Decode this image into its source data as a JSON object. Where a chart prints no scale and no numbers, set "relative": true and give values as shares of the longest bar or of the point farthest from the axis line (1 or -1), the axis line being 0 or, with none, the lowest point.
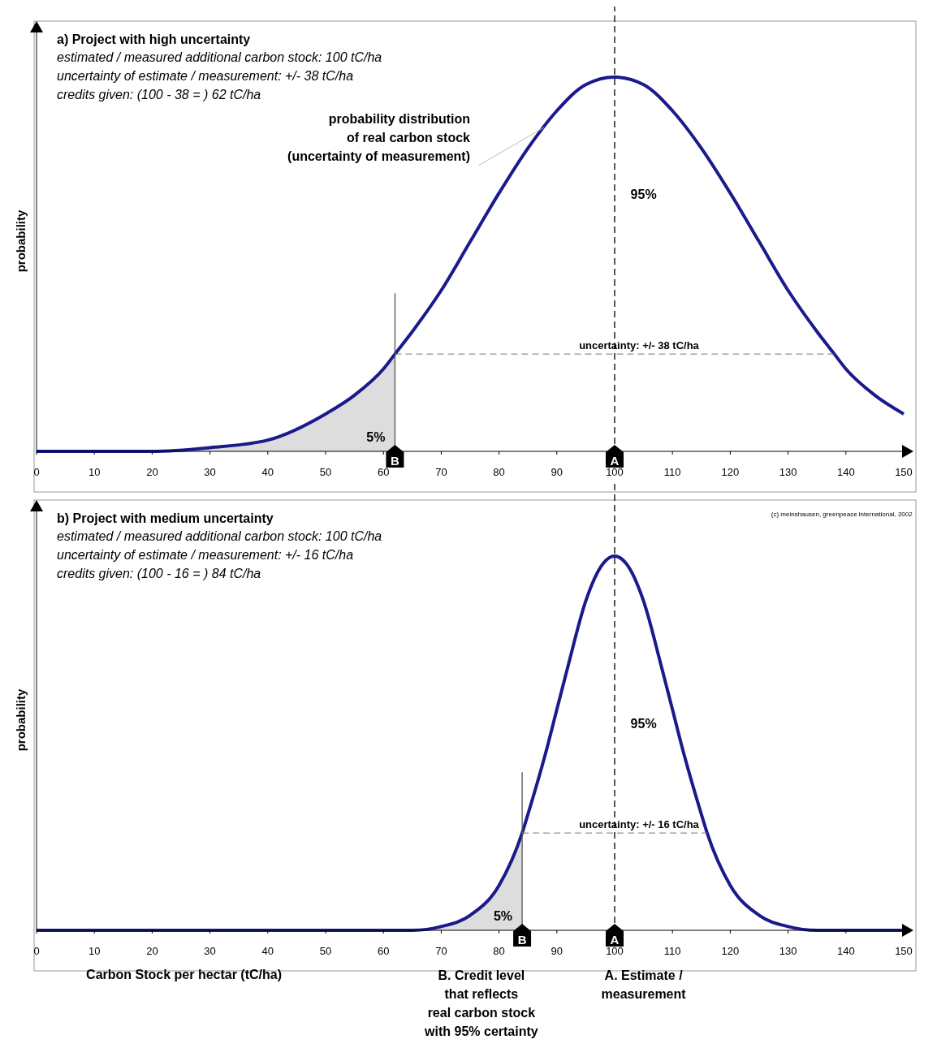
{
  "chart_data": [
    {
      "type": "line",
      "title": "a) Project with high uncertainty",
      "subtitle": "estimated / measured additional carbon stock: 100 tC/ha\nuncertainty of estimate / measurement: +/- 38 tC/ha\ncredits given: (100 - 38 = ) 62 tC/ha",
      "ylabel": "probability",
      "relative": true,
      "x": [
        0,
        10,
        20,
        30,
        40,
        50,
        55,
        60,
        62,
        65,
        70,
        75,
        80,
        85,
        90,
        95,
        100,
        105,
        110,
        115,
        120,
        125,
        130,
        135,
        138,
        140,
        145,
        150
      ],
      "series": [
        {
          "color": "#1a1a8c",
          "values": [
            0,
            0,
            0,
            0.01,
            0.03,
            0.1,
            0.15,
            0.22,
            0.26,
            0.32,
            0.43,
            0.56,
            0.69,
            0.81,
            0.91,
            0.98,
            1,
            0.98,
            0.91,
            0.81,
            0.69,
            0.56,
            0.43,
            0.32,
            0.26,
            0.22,
            0.15,
            0.1
          ]
        },
        {
          "type": "area",
          "name": "5%",
          "color": "#dddddd",
          "x": [
            0,
            10,
            20,
            30,
            40,
            50,
            55,
            60,
            62
          ],
          "values": [
            0,
            0,
            0,
            0.01,
            0.03,
            0.1,
            0.15,
            0.22,
            0.26
          ]
        }
      ],
      "xlim": [
        0,
        150
      ],
      "xticks": [
        0,
        10,
        20,
        30,
        40,
        50,
        60,
        70,
        80,
        90,
        100,
        110,
        120,
        130,
        140,
        150
      ],
      "ref_lines": [
        {
          "axis": "x",
          "value": 100,
          "label": "A",
          "line_style": "dashed",
          "color": "#000000"
        },
        {
          "axis": "x",
          "value": 62,
          "label": "B",
          "line_style": "solid",
          "color": "#555555"
        },
        {
          "axis": "y",
          "value": 0.26,
          "label": "uncertainty: +/- 38 tC/ha",
          "line_style": "dashed",
          "color": "#777777"
        }
      ],
      "annotations": [
        "95%",
        "probability distribution\nof real carbon stock\n(uncertainty of measurement)"
      ]
    },
    {
      "type": "line",
      "title": "b) Project with medium uncertainty",
      "subtitle": "estimated / measured additional carbon stock: 100 tC/ha\nuncertainty of estimate / measurement: +/- 16 tC/ha\ncredits given: (100 - 16 = ) 84 tC/ha",
      "xlabel": "Carbon Stock per hectar (tC/ha)",
      "ylabel": "probability",
      "relative": true,
      "x": [
        0,
        50,
        60,
        65,
        70,
        75,
        80,
        84,
        85,
        88,
        90,
        92,
        95,
        98,
        100,
        102,
        105,
        108,
        110,
        112,
        115,
        116,
        120,
        125,
        130,
        135,
        140,
        150
      ],
      "series": [
        {
          "color": "#1a1a8c",
          "values": [
            0,
            0,
            0,
            0,
            0.01,
            0.04,
            0.12,
            0.26,
            0.31,
            0.47,
            0.59,
            0.71,
            0.88,
            0.98,
            1,
            0.98,
            0.88,
            0.71,
            0.59,
            0.47,
            0.31,
            0.26,
            0.12,
            0.04,
            0.01,
            0,
            0,
            0
          ]
        },
        {
          "type": "area",
          "name": "5%",
          "color": "#dddddd",
          "x": [
            0,
            50,
            60,
            65,
            70,
            75,
            80,
            84
          ],
          "values": [
            0,
            0,
            0,
            0,
            0.01,
            0.04,
            0.12,
            0.26
          ]
        }
      ],
      "xlim": [
        0,
        150
      ],
      "xticks": [
        0,
        10,
        20,
        30,
        40,
        50,
        60,
        70,
        80,
        90,
        100,
        110,
        120,
        130,
        140,
        150
      ],
      "ref_lines": [
        {
          "axis": "x",
          "value": 100,
          "label": "A",
          "line_style": "dashed",
          "color": "#000000"
        },
        {
          "axis": "x",
          "value": 84,
          "label": "B",
          "line_style": "solid",
          "color": "#555555"
        },
        {
          "axis": "y",
          "value": 0.26,
          "label": "uncertainty: +/- 16 tC/ha",
          "line_style": "dashed",
          "color": "#777777"
        }
      ],
      "annotations": [
        "95%",
        "B. Credit level\nthat reflects\nreal carbon stock\nwith 95% certainty",
        "A. Estimate /\nmeasurement",
        "(c) meinshausen, greenpeace international, 2002"
      ]
    }
  ]
}
